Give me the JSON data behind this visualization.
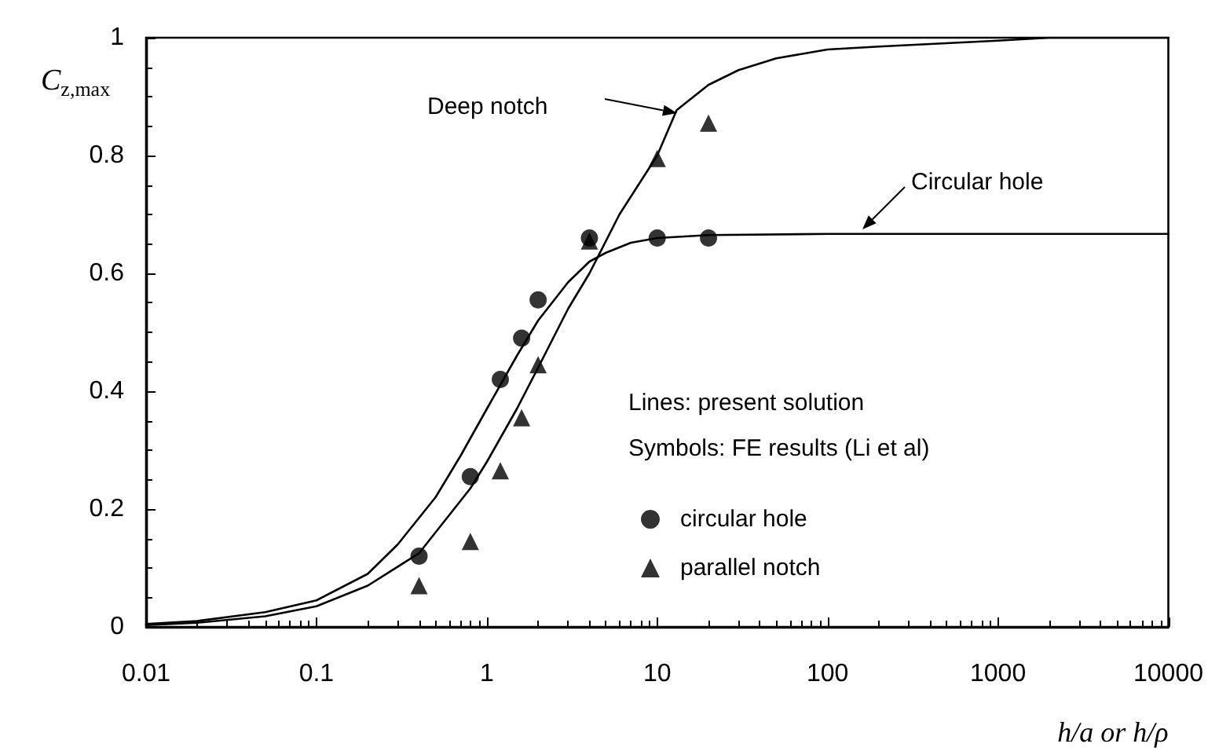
{
  "chart_data": {
    "type": "line",
    "xlabel": "h/a or h/ρ",
    "ylabel": "C$_{z,max}$",
    "log": "x",
    "xlim": [
      0.01,
      10000
    ],
    "xticks": [
      0.01,
      0.1,
      1,
      10,
      100,
      1000,
      10000
    ],
    "ylim": [
      0,
      1
    ],
    "yticks": [
      0,
      0.2,
      0.4,
      0.6,
      0.8,
      1
    ],
    "grid": false,
    "legend": "right",
    "series": [
      {
        "color": "#000000",
        "marker": "none",
        "x": [
          0.01,
          0.02,
          0.05,
          0.1,
          0.2,
          0.3,
          0.5,
          0.7,
          1,
          1.5,
          2,
          3,
          4,
          5,
          7,
          10,
          20,
          100,
          145,
          10000
        ],
        "values": [
          0.005,
          0.01,
          0.025,
          0.045,
          0.09,
          0.14,
          0.22,
          0.29,
          0.37,
          0.46,
          0.52,
          0.585,
          0.62,
          0.635,
          0.652,
          0.66,
          0.665,
          0.667,
          0.667,
          0.667
        ]
      },
      {
        "color": "#000000",
        "marker": "none",
        "x": [
          0.01,
          0.02,
          0.05,
          0.1,
          0.2,
          0.4,
          0.8,
          1,
          1.5,
          2,
          3,
          4,
          6,
          10,
          13,
          20,
          30,
          50,
          100,
          200,
          1000,
          2000,
          10000
        ],
        "values": [
          0.003,
          0.007,
          0.018,
          0.035,
          0.07,
          0.125,
          0.235,
          0.28,
          0.37,
          0.44,
          0.54,
          0.6,
          0.7,
          0.8,
          0.877,
          0.92,
          0.945,
          0.965,
          0.98,
          0.985,
          0.995,
          1.0,
          1.0
        ]
      },
      {
        "type": "scatter",
        "name": "circular hole",
        "color": "#000000",
        "marker": "circle",
        "x": [
          0.4,
          0.8,
          1.2,
          1.6,
          2,
          4,
          10,
          20
        ],
        "values": [
          0.12,
          0.255,
          0.42,
          0.49,
          0.555,
          0.66,
          0.66,
          0.66
        ]
      },
      {
        "type": "scatter",
        "name": "parallel notch",
        "color": "#000000",
        "marker": "triangle",
        "x": [
          0.4,
          0.8,
          1.2,
          1.6,
          2,
          4,
          10,
          20
        ],
        "values": [
          0.07,
          0.145,
          0.265,
          0.355,
          0.445,
          0.655,
          0.795,
          0.855
        ]
      }
    ],
    "annotations": [
      "Deep notch",
      "Circular hole",
      "Lines: present solution",
      "Symbols: FE results (Li et al)"
    ]
  }
}
